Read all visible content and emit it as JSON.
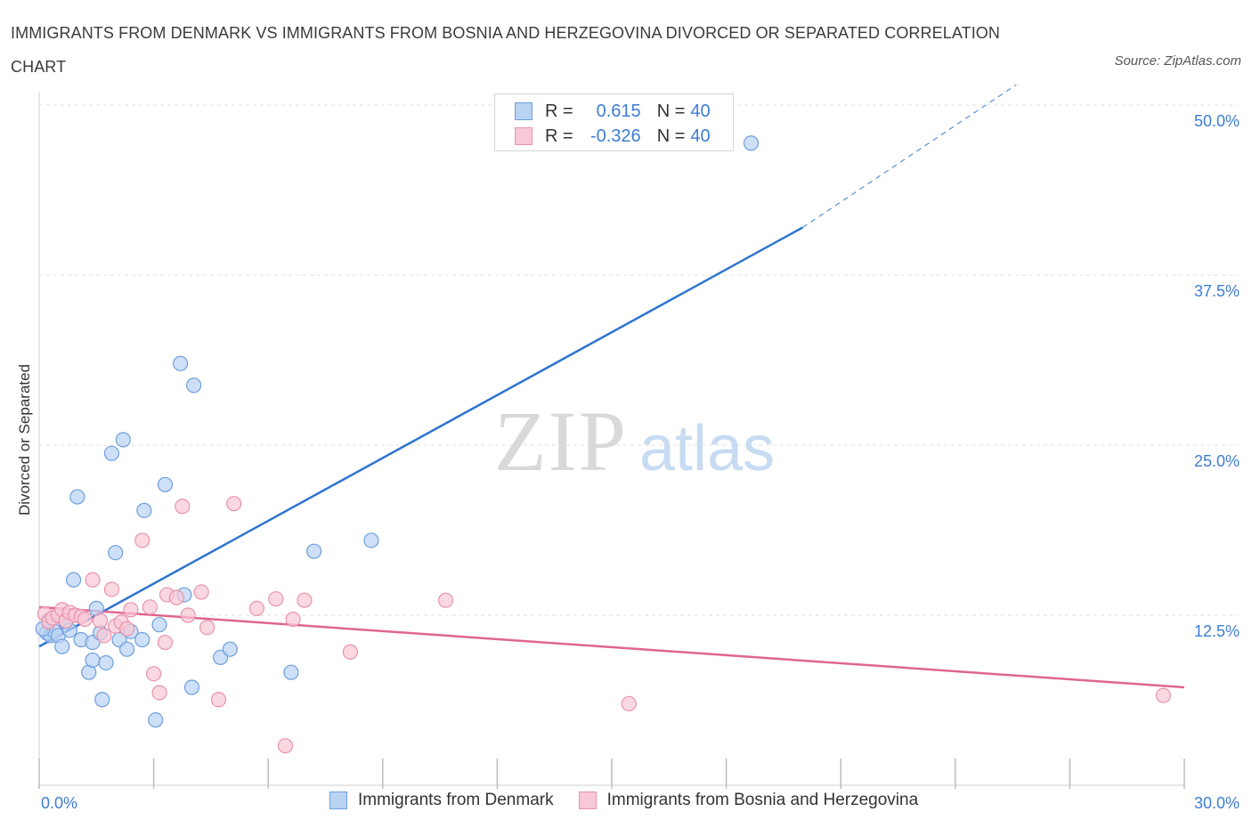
{
  "title": "IMMIGRANTS FROM DENMARK VS IMMIGRANTS FROM BOSNIA AND HERZEGOVINA DIVORCED OR SEPARATED CORRELATION CHART",
  "source": "Source: ZipAtlas.com",
  "watermark": {
    "zip": "ZIP",
    "atlas": "atlas"
  },
  "legend": {
    "rows": [
      {
        "r_label": "R =",
        "r_value": "0.615",
        "n_label": "N =",
        "n_value": "40"
      },
      {
        "r_label": "R =",
        "r_value": "-0.326",
        "n_label": "N =",
        "n_value": "40"
      }
    ]
  },
  "colors": {
    "denmark_fill": "#b9d3f3",
    "denmark_stroke": "#6d9fdc",
    "denmark_line": "#2e74cf",
    "bosnia_fill": "#f8c8d6",
    "bosnia_stroke": "#e893ad",
    "bosnia_line": "#e0668f",
    "grid": "#e2e2e2",
    "tick_label": "#3d7dd3"
  },
  "chart_data": {
    "type": "scatter",
    "title": "IMMIGRANTS FROM DENMARK VS IMMIGRANTS FROM BOSNIA AND HERZEGOVINA DIVORCED OR SEPARATED CORRELATION CHART",
    "xlabel": "",
    "ylabel": "Divorced or Separated",
    "xlim": [
      0,
      30
    ],
    "ylim": [
      0,
      50
    ],
    "x_tick_labels": [
      "0.0%",
      "30.0%"
    ],
    "y_ticks": [
      12.5,
      25.0,
      37.5,
      50.0
    ],
    "y_tick_labels": [
      "12.5%",
      "25.0%",
      "37.5%",
      "50.0%"
    ],
    "grid": "horizontal dashed",
    "legend_position": "bottom",
    "series": [
      {
        "name": "Immigrants from Denmark",
        "points": [
          [
            0.2,
            11.2
          ],
          [
            0.3,
            11.0
          ],
          [
            0.4,
            11.3
          ],
          [
            0.5,
            11.0
          ],
          [
            0.6,
            10.2
          ],
          [
            0.7,
            12.0
          ],
          [
            0.8,
            11.4
          ],
          [
            0.9,
            15.1
          ],
          [
            1.0,
            21.2
          ],
          [
            1.1,
            10.7
          ],
          [
            1.3,
            8.3
          ],
          [
            1.4,
            9.2
          ],
          [
            1.4,
            10.5
          ],
          [
            1.5,
            13.0
          ],
          [
            1.6,
            11.2
          ],
          [
            1.65,
            6.3
          ],
          [
            1.75,
            9.0
          ],
          [
            1.9,
            24.4
          ],
          [
            2.0,
            17.1
          ],
          [
            2.1,
            10.7
          ],
          [
            2.2,
            25.4
          ],
          [
            2.3,
            10.0
          ],
          [
            2.4,
            11.3
          ],
          [
            2.7,
            10.7
          ],
          [
            2.75,
            20.2
          ],
          [
            3.05,
            4.8
          ],
          [
            3.15,
            11.8
          ],
          [
            3.3,
            22.1
          ],
          [
            3.8,
            14.0
          ],
          [
            3.7,
            31.0
          ],
          [
            4.0,
            7.2
          ],
          [
            4.05,
            29.4
          ],
          [
            4.75,
            9.4
          ],
          [
            5.0,
            10.0
          ],
          [
            6.6,
            8.3
          ],
          [
            7.2,
            17.2
          ],
          [
            8.7,
            18.0
          ],
          [
            18.65,
            47.2
          ],
          [
            0.1,
            11.5
          ],
          [
            0.25,
            12.1
          ]
        ]
      },
      {
        "name": "Immigrants from Bosnia and Herzegovina",
        "points": [
          [
            0.15,
            12.6
          ],
          [
            0.25,
            12.0
          ],
          [
            0.35,
            12.3
          ],
          [
            0.5,
            12.5
          ],
          [
            0.6,
            12.9
          ],
          [
            0.7,
            12.1
          ],
          [
            0.8,
            12.7
          ],
          [
            0.95,
            12.5
          ],
          [
            1.1,
            12.4
          ],
          [
            1.2,
            12.2
          ],
          [
            1.4,
            15.1
          ],
          [
            1.6,
            12.1
          ],
          [
            1.7,
            11.0
          ],
          [
            1.9,
            14.4
          ],
          [
            2.0,
            11.7
          ],
          [
            2.15,
            12.0
          ],
          [
            2.3,
            11.5
          ],
          [
            2.4,
            12.9
          ],
          [
            2.7,
            18.0
          ],
          [
            2.9,
            13.1
          ],
          [
            3.0,
            8.2
          ],
          [
            3.15,
            6.8
          ],
          [
            3.3,
            10.5
          ],
          [
            3.35,
            14.0
          ],
          [
            3.6,
            13.8
          ],
          [
            3.75,
            20.5
          ],
          [
            3.9,
            12.5
          ],
          [
            4.25,
            14.2
          ],
          [
            4.4,
            11.6
          ],
          [
            4.7,
            6.3
          ],
          [
            5.1,
            20.7
          ],
          [
            5.7,
            13.0
          ],
          [
            6.2,
            13.7
          ],
          [
            6.45,
            2.9
          ],
          [
            6.65,
            12.2
          ],
          [
            6.95,
            13.6
          ],
          [
            8.15,
            9.8
          ],
          [
            10.65,
            13.6
          ],
          [
            15.45,
            6.0
          ],
          [
            29.45,
            6.6
          ]
        ]
      }
    ],
    "trend_lines": [
      {
        "series": "Immigrants from Denmark",
        "x": [
          0,
          20
        ],
        "y": [
          10.2,
          41.0
        ],
        "dashed_extension": {
          "x": [
            20,
            25.6
          ],
          "y": [
            41.0,
            51.5
          ]
        }
      },
      {
        "series": "Immigrants from Bosnia and Herzegovina",
        "x": [
          0,
          30
        ],
        "y": [
          13.1,
          7.2
        ]
      }
    ]
  }
}
